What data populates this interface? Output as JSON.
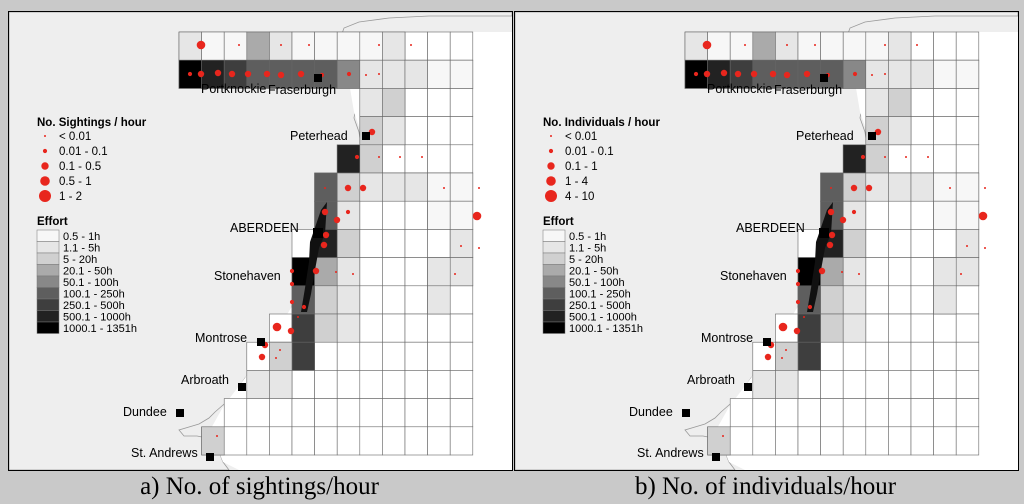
{
  "panels": [
    {
      "id": "a",
      "caption": "a) No. of sightings/hour",
      "legend_title": "No. Sightings / hour",
      "size_classes": [
        "< 0.01",
        "0.01 - 0.1",
        "0.1 - 0.5",
        "0.5 - 1",
        "1 - 2"
      ]
    },
    {
      "id": "b",
      "caption": "b) No. of individuals/hour",
      "legend_title": "No. Individuals / hour",
      "size_classes": [
        "< 0.01",
        "0.01 - 0.1",
        "0.1 - 1",
        "1 - 4",
        "4 - 10"
      ]
    }
  ],
  "effort_legend": {
    "title": "Effort",
    "classes": [
      "0.5 - 1h",
      "1.1 - 5h",
      "5 - 20h",
      "20.1 - 50h",
      "50.1 - 100h",
      "100.1 - 250h",
      "250.1 - 500h",
      "500.1 - 1000h",
      "1000.1 - 1351h"
    ],
    "colors": [
      "#f7f7f7",
      "#e6e6e6",
      "#d0d0d0",
      "#aaaaaa",
      "#888888",
      "#5e5e5e",
      "#3e3e3e",
      "#222222",
      "#000000"
    ]
  },
  "towns": [
    "Portknockie",
    "Fraserburgh",
    "Peterhead",
    "ABERDEEN",
    "Stonehaven",
    "Montrose",
    "Arbroath",
    "Dundee",
    "St. Andrews"
  ],
  "colors": {
    "sighting_dot": "#e8261d",
    "land": "#eeeeee",
    "coast": "#999999",
    "background": "#c9c9c9"
  }
}
